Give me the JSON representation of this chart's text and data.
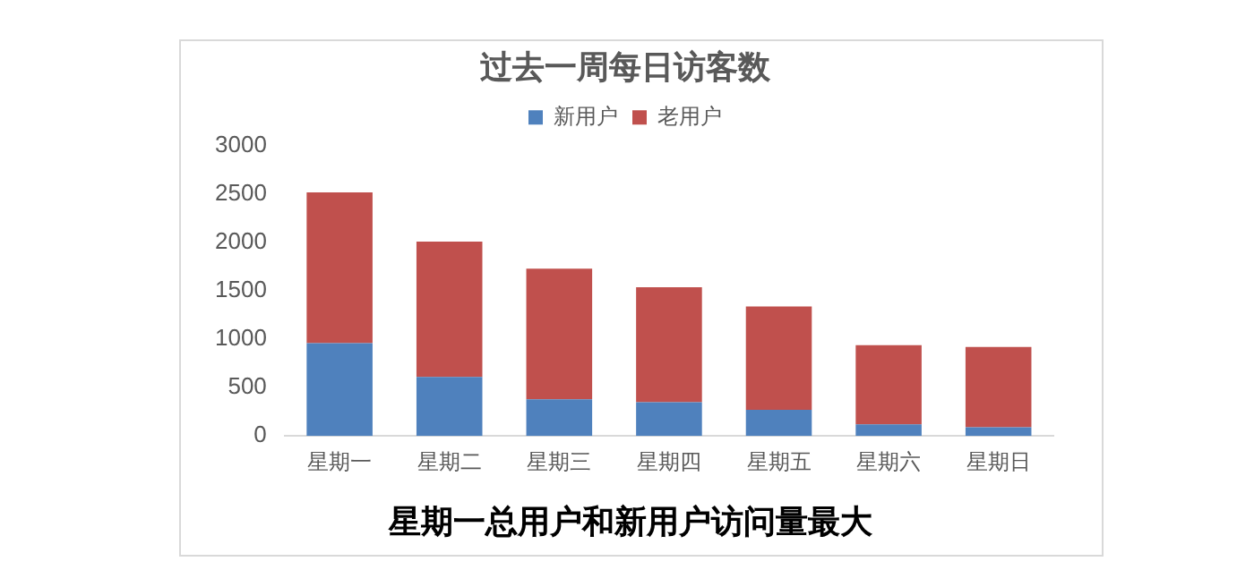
{
  "chart_data": {
    "type": "bar",
    "title": "过去一周每日访客数",
    "stacked": true,
    "legend": "top",
    "grid": false,
    "categories": [
      "星期一",
      "星期二",
      "星期三",
      "星期四",
      "星期五",
      "星期六",
      "星期日"
    ],
    "series": [
      {
        "name": "新用户",
        "color": "#4f81bd",
        "values": [
          960,
          610,
          380,
          350,
          270,
          120,
          90
        ]
      },
      {
        "name": "老用户",
        "color": "#c0504d",
        "values": [
          1560,
          1400,
          1350,
          1190,
          1070,
          820,
          830
        ]
      }
    ],
    "ylim": [
      0,
      3000
    ],
    "yticks": [
      0,
      500,
      1000,
      1500,
      2000,
      2500,
      3000
    ],
    "annotations": [
      "星期一总用户和新用户访问量最大"
    ]
  }
}
